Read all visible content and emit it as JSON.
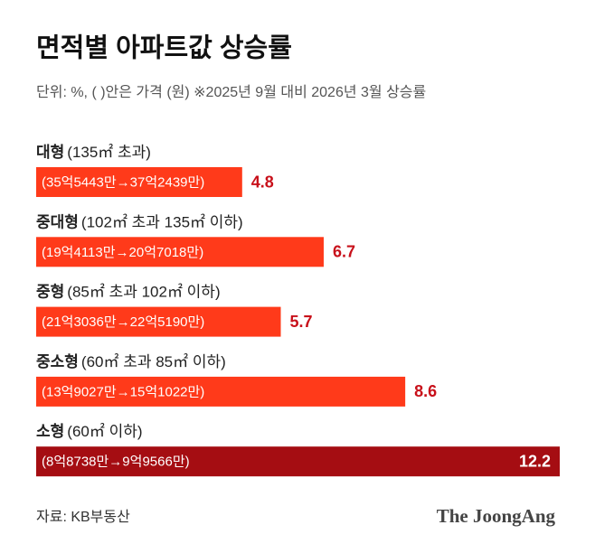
{
  "chart_data": {
    "type": "bar",
    "orientation": "horizontal",
    "title": "면적별 아파트값 상승률",
    "subtitle": "단위: %, ( )안은 가격 (원) ※2025년 9월 대비 2026년 3월 상승률",
    "categories": [
      "대형",
      "중대형",
      "중형",
      "중소형",
      "소형"
    ],
    "category_notes": [
      "(135㎡ 초과)",
      "(102㎡ 초과 135㎡ 이하)",
      "(85㎡ 초과 102㎡ 이하)",
      "(60㎡ 초과 85㎡ 이하)",
      "(60㎡ 이하)"
    ],
    "bar_labels": [
      "(35억5443만→37억2439만)",
      "(19억4113만→20억7018만)",
      "(21억3036만→22억5190만)",
      "(13억9027만→15억1022만)",
      "(8억8738만→9억9566만)"
    ],
    "values": [
      4.8,
      6.7,
      5.7,
      8.6,
      12.2
    ],
    "colors": [
      "#ff3a1a",
      "#ff3a1a",
      "#ff3a1a",
      "#ff3a1a",
      "#a50d12"
    ],
    "source": "자료: KB부동산",
    "logo": "The JoongAng"
  }
}
